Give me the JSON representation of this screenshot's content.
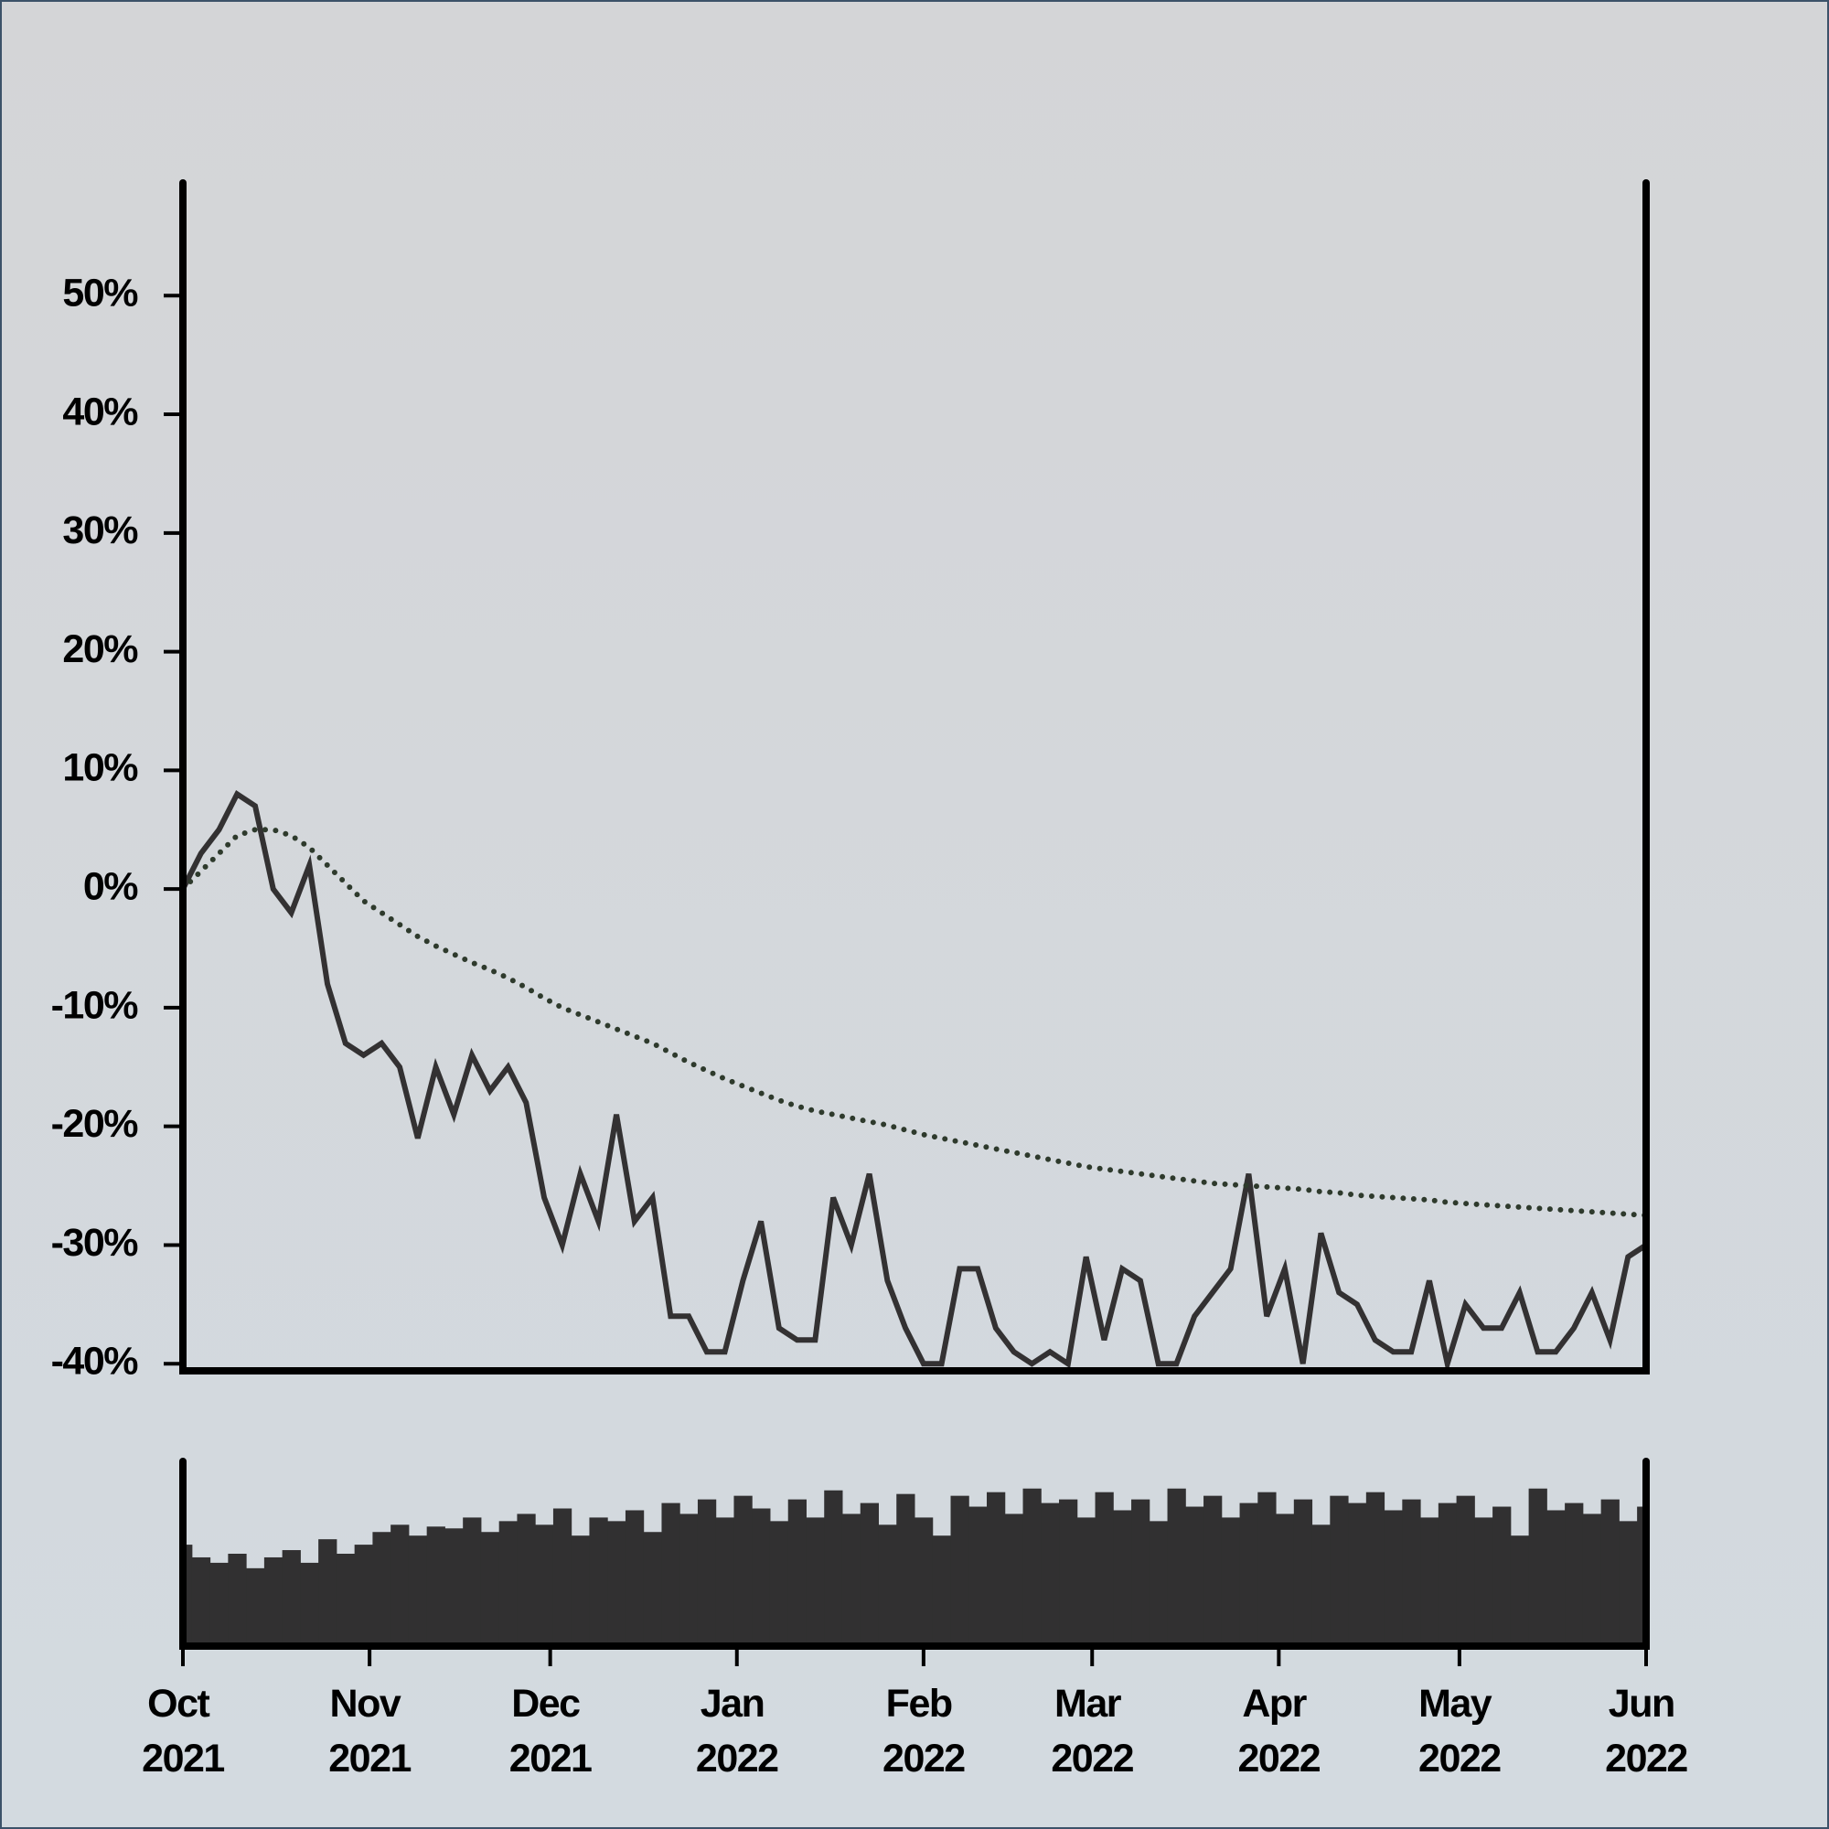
{
  "chart_data": [
    {
      "type": "line",
      "xlim": [
        0,
        243
      ],
      "ylim": [
        -40.6,
        59.5
      ],
      "yticks": [
        {
          "value": -40,
          "label": "-40%"
        },
        {
          "value": -30,
          "label": "-30%"
        },
        {
          "value": -20,
          "label": "-20%"
        },
        {
          "value": -10,
          "label": "-10%"
        },
        {
          "value": 0,
          "label": "0%"
        },
        {
          "value": 10,
          "label": "10%"
        },
        {
          "value": 20,
          "label": "20%"
        },
        {
          "value": 30,
          "label": "30%"
        },
        {
          "value": 40,
          "label": "40%"
        },
        {
          "value": 50,
          "label": "50%"
        }
      ],
      "x": [
        0,
        3,
        6,
        9,
        12,
        15,
        18,
        21,
        24,
        27,
        30,
        33,
        36,
        39,
        42,
        45,
        48,
        51,
        54,
        57,
        60,
        63,
        66,
        69,
        72,
        75,
        78,
        81,
        84,
        87,
        90,
        93,
        96,
        99,
        102,
        105,
        108,
        111,
        114,
        117,
        120,
        123,
        126,
        129,
        132,
        135,
        138,
        141,
        144,
        147,
        150,
        153,
        156,
        159,
        162,
        165,
        168,
        171,
        174,
        177,
        180,
        183,
        186,
        189,
        192,
        195,
        198,
        201,
        204,
        207,
        210,
        213,
        216,
        219,
        222,
        225,
        228,
        231,
        234,
        237,
        240,
        243
      ],
      "series": [
        {
          "color": "#333132",
          "style": "solid",
          "values": [
            0,
            3,
            5,
            8,
            7,
            0,
            -2,
            2,
            -8,
            -13,
            -14,
            -13,
            -15,
            -21,
            -15,
            -19,
            -14,
            -17,
            -15,
            -18,
            -26,
            -30,
            -24,
            -28,
            -19,
            -28,
            -26,
            -36,
            -36,
            -39,
            -39,
            -33,
            -28,
            -37,
            -38,
            -38,
            -26,
            -30,
            -24,
            -33,
            -37,
            -40,
            -40,
            -32,
            -32,
            -37,
            -39,
            -40,
            -39,
            -40,
            -31,
            -38,
            -32,
            -33,
            -40,
            -40,
            -36,
            -34,
            -32,
            -24,
            -36,
            -32,
            -40,
            -29,
            -34,
            -35,
            -38,
            -39,
            -39,
            -33,
            -40,
            -35,
            -37,
            -37,
            -34,
            -39,
            -39,
            -37,
            -34,
            -38,
            -31,
            -30
          ]
        },
        {
          "color": "#2e3a2c",
          "style": "dotted",
          "values": [
            0,
            1.5,
            3,
            4.5,
            5,
            5,
            4.5,
            3.5,
            2,
            0.5,
            -1,
            -2,
            -3,
            -4,
            -4.8,
            -5.5,
            -6.2,
            -6.8,
            -7.5,
            -8.3,
            -9.2,
            -10,
            -10.6,
            -11.2,
            -11.8,
            -12.4,
            -13,
            -13.8,
            -14.6,
            -15.3,
            -16,
            -16.6,
            -17.2,
            -17.8,
            -18.3,
            -18.7,
            -19,
            -19.3,
            -19.6,
            -19.9,
            -20.3,
            -20.7,
            -21,
            -21.3,
            -21.6,
            -21.9,
            -22.2,
            -22.5,
            -22.8,
            -23.1,
            -23.4,
            -23.6,
            -23.8,
            -24,
            -24.2,
            -24.4,
            -24.6,
            -24.8,
            -24.9,
            -25,
            -25.1,
            -25.2,
            -25.3,
            -25.5,
            -25.6,
            -25.8,
            -25.9,
            -26,
            -26.1,
            -26.2,
            -26.4,
            -26.5,
            -26.6,
            -26.7,
            -26.8,
            -26.9,
            -27,
            -27.1,
            -27.2,
            -27.3,
            -27.4,
            -27.5
          ]
        }
      ]
    },
    {
      "type": "bar",
      "color": "#313031",
      "xlim": [
        0,
        243
      ],
      "ylim": [
        0,
        100
      ],
      "xticks": [
        {
          "value": 0,
          "label": "Oct 2021"
        },
        {
          "value": 31,
          "label": "Nov 2021"
        },
        {
          "value": 61,
          "label": "Dec 2021"
        },
        {
          "value": 92,
          "label": "Jan 2022"
        },
        {
          "value": 123,
          "label": "Feb 2022"
        },
        {
          "value": 151,
          "label": "Mar 2022"
        },
        {
          "value": 182,
          "label": "Apr 2022"
        },
        {
          "value": 212,
          "label": "May 2022"
        },
        {
          "value": 243,
          "label": "Jun 2022"
        }
      ],
      "x": [
        0,
        3,
        6,
        9,
        12,
        15,
        18,
        21,
        24,
        27,
        30,
        33,
        36,
        39,
        42,
        45,
        48,
        51,
        54,
        57,
        60,
        63,
        66,
        69,
        72,
        75,
        78,
        81,
        84,
        87,
        90,
        93,
        96,
        99,
        102,
        105,
        108,
        111,
        114,
        117,
        120,
        123,
        126,
        129,
        132,
        135,
        138,
        141,
        144,
        147,
        150,
        153,
        156,
        159,
        162,
        165,
        168,
        171,
        174,
        177,
        180,
        183,
        186,
        189,
        192,
        195,
        198,
        201,
        204,
        207,
        210,
        213,
        216,
        219,
        222,
        225,
        228,
        231,
        234,
        237,
        240,
        243
      ],
      "values": [
        55,
        48,
        45,
        50,
        42,
        48,
        52,
        45,
        58,
        50,
        55,
        62,
        66,
        60,
        65,
        64,
        70,
        62,
        68,
        72,
        66,
        75,
        60,
        70,
        68,
        74,
        62,
        78,
        72,
        80,
        70,
        82,
        75,
        68,
        80,
        70,
        85,
        72,
        78,
        66,
        83,
        70,
        60,
        82,
        76,
        84,
        72,
        86,
        78,
        80,
        70,
        84,
        74,
        80,
        68,
        86,
        76,
        82,
        70,
        78,
        84,
        72,
        80,
        66,
        82,
        78,
        84,
        74,
        80,
        70,
        78,
        82,
        70,
        76,
        60,
        86,
        74,
        78,
        72,
        80,
        68,
        76
      ]
    }
  ]
}
